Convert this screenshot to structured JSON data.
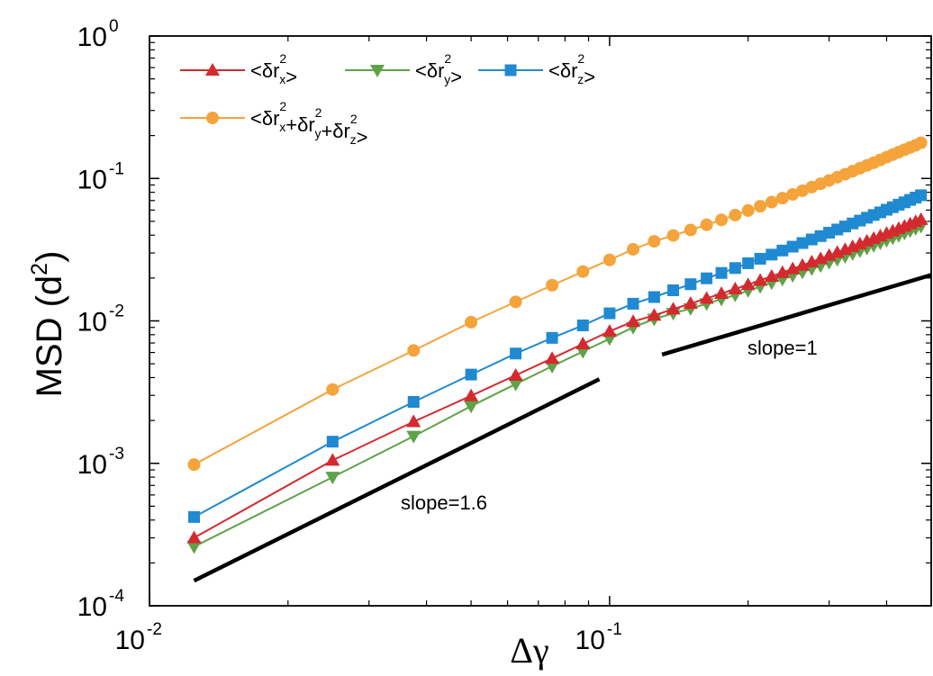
{
  "chart_data": {
    "type": "line",
    "xscale": "log",
    "yscale": "log",
    "xlim": [
      0.01,
      0.5
    ],
    "ylim": [
      0.0001,
      1
    ],
    "xlabel": "Δγ",
    "ylabel": {
      "base": "MSD (d",
      "sup": "2",
      "close": ")"
    },
    "x_ticks": [
      {
        "value": 0.01,
        "base": "10",
        "exp": "-2"
      },
      {
        "value": 0.1,
        "base": "10",
        "exp": "-1"
      }
    ],
    "y_ticks": [
      {
        "value": 0.0001,
        "base": "10",
        "exp": "-4"
      },
      {
        "value": 0.001,
        "base": "10",
        "exp": "-3"
      },
      {
        "value": 0.01,
        "base": "10",
        "exp": "-2"
      },
      {
        "value": 0.1,
        "base": "10",
        "exp": "-1"
      },
      {
        "value": 1,
        "base": "10",
        "exp": "0"
      }
    ],
    "legend_position": "top-left",
    "series": [
      {
        "name": "<δr²x>",
        "color": "#d42a2f",
        "marker": "triangle-up",
        "x": [
          0.0125,
          0.025,
          0.0375,
          0.05,
          0.0625,
          0.075,
          0.0875,
          0.1,
          0.1125,
          0.125,
          0.1375,
          0.15,
          0.1625,
          0.175,
          0.1875,
          0.2,
          0.2125,
          0.225,
          0.2375,
          0.25,
          0.2625,
          0.275,
          0.2875,
          0.3,
          0.3125,
          0.325,
          0.3375,
          0.35,
          0.3625,
          0.375,
          0.3875,
          0.4,
          0.4125,
          0.425,
          0.4375,
          0.45,
          0.4625,
          0.475
        ],
        "y": [
          0.0003,
          0.00105,
          0.00196,
          0.00298,
          0.00415,
          0.00545,
          0.0069,
          0.00845,
          0.0099,
          0.01095,
          0.0121,
          0.01325,
          0.0144,
          0.01555,
          0.01675,
          0.01795,
          0.01925,
          0.02055,
          0.02185,
          0.0232,
          0.02455,
          0.02595,
          0.02735,
          0.0288,
          0.03025,
          0.0317,
          0.0332,
          0.03475,
          0.0363,
          0.0379,
          0.0395,
          0.04115,
          0.0428,
          0.0445,
          0.0462,
          0.04795,
          0.0497,
          0.0515
        ]
      },
      {
        "name": "<δr²y>",
        "color": "#5fa247",
        "marker": "triangle-down",
        "x": [
          0.0125,
          0.025,
          0.0375,
          0.05,
          0.0625,
          0.075,
          0.0875,
          0.1,
          0.1125,
          0.125,
          0.1375,
          0.15,
          0.1625,
          0.175,
          0.1875,
          0.2,
          0.2125,
          0.225,
          0.2375,
          0.25,
          0.2625,
          0.275,
          0.2875,
          0.3,
          0.3125,
          0.325,
          0.3375,
          0.35,
          0.3625,
          0.375,
          0.3875,
          0.4,
          0.4125,
          0.425,
          0.4375,
          0.45,
          0.4625,
          0.475
        ],
        "y": [
          0.00026,
          0.0008,
          0.00155,
          0.00252,
          0.0036,
          0.0048,
          0.0061,
          0.0075,
          0.009,
          0.0103,
          0.0113,
          0.0122,
          0.0132,
          0.0142,
          0.0152,
          0.0163,
          0.0174,
          0.0185,
          0.0196,
          0.0208,
          0.022,
          0.0232,
          0.0244,
          0.0257,
          0.027,
          0.0283,
          0.0296,
          0.031,
          0.0324,
          0.0338,
          0.0352,
          0.0367,
          0.0382,
          0.0397,
          0.0413,
          0.0429,
          0.0445,
          0.0461
        ]
      },
      {
        "name": "<δr²z>",
        "color": "#1f8ad1",
        "marker": "square",
        "x": [
          0.0125,
          0.025,
          0.0375,
          0.05,
          0.0625,
          0.075,
          0.0875,
          0.1,
          0.1125,
          0.125,
          0.1375,
          0.15,
          0.1625,
          0.175,
          0.1875,
          0.2,
          0.2125,
          0.225,
          0.2375,
          0.25,
          0.2625,
          0.275,
          0.2875,
          0.3,
          0.3125,
          0.325,
          0.3375,
          0.35,
          0.3625,
          0.375,
          0.3875,
          0.4,
          0.4125,
          0.425,
          0.4375,
          0.45,
          0.4625,
          0.475
        ],
        "y": [
          0.00042,
          0.00142,
          0.0027,
          0.0042,
          0.0059,
          0.0076,
          0.0093,
          0.0113,
          0.0132,
          0.0147,
          0.0164,
          0.0181,
          0.0199,
          0.0217,
          0.0235,
          0.0254,
          0.0273,
          0.0292,
          0.0312,
          0.0332,
          0.0352,
          0.0373,
          0.0394,
          0.0416,
          0.0438,
          0.046,
          0.0483,
          0.0506,
          0.053,
          0.0554,
          0.0578,
          0.0603,
          0.0628,
          0.0654,
          0.068,
          0.0707,
          0.0734,
          0.0762
        ]
      },
      {
        "name": "<δr²x+δr²y+δr²z>",
        "color": "#f5a33b",
        "marker": "circle",
        "x": [
          0.0125,
          0.025,
          0.0375,
          0.05,
          0.0625,
          0.075,
          0.0875,
          0.1,
          0.1125,
          0.125,
          0.1375,
          0.15,
          0.1625,
          0.175,
          0.1875,
          0.2,
          0.2125,
          0.225,
          0.2375,
          0.25,
          0.2625,
          0.275,
          0.2875,
          0.3,
          0.3125,
          0.325,
          0.3375,
          0.35,
          0.3625,
          0.375,
          0.3875,
          0.4,
          0.4125,
          0.425,
          0.4375,
          0.45,
          0.4625,
          0.475
        ],
        "y": [
          0.00098,
          0.0033,
          0.0062,
          0.0098,
          0.0136,
          0.0178,
          0.0222,
          0.0268,
          0.0318,
          0.0362,
          0.0398,
          0.0435,
          0.0473,
          0.0512,
          0.0553,
          0.0595,
          0.0638,
          0.0682,
          0.0727,
          0.0773,
          0.082,
          0.0869,
          0.0918,
          0.0968,
          0.102,
          0.107,
          0.1125,
          0.118,
          0.1235,
          0.129,
          0.135,
          0.141,
          0.147,
          0.153,
          0.159,
          0.165,
          0.171,
          0.178
        ]
      }
    ],
    "reference_lines": [
      {
        "label": "slope=1.6",
        "x": [
          0.0125,
          0.095
        ],
        "y": [
          0.00015,
          0.0039
        ]
      },
      {
        "label": "slope=1",
        "x": [
          0.13,
          0.5
        ],
        "y": [
          0.0058,
          0.021
        ]
      }
    ]
  }
}
